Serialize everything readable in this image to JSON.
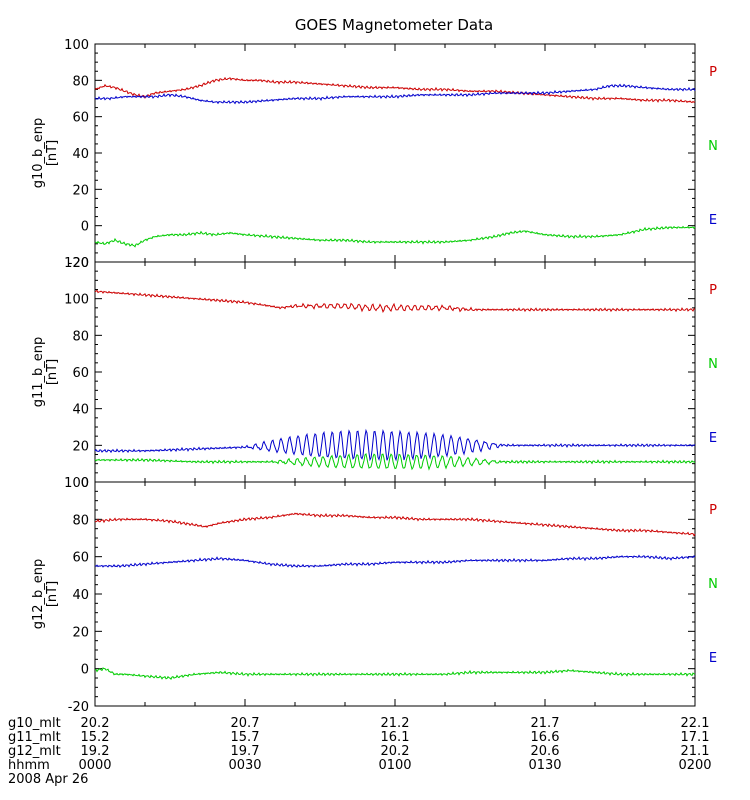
{
  "chart_data": {
    "type": "line",
    "title": "GOES Magnetometer Data",
    "panels": [
      {
        "ylabel": "g10_b_enp",
        "yunit": "[nT]",
        "ylim": [
          -20,
          100
        ],
        "yticks": [
          -20,
          0,
          20,
          40,
          60,
          80,
          100
        ],
        "legend": [
          "P",
          "N",
          "E"
        ],
        "series": [
          {
            "name": "P",
            "color": "#cc0000",
            "x": [
              0,
              2,
              4,
              6,
              8,
              10,
              12,
              15,
              18,
              21,
              24,
              27,
              30,
              33,
              36,
              40,
              45,
              50,
              55,
              60,
              65,
              70,
              75,
              80,
              85,
              90,
              95,
              100,
              105,
              110,
              115,
              120
            ],
            "y": [
              75,
              77,
              76,
              74,
              72,
              71,
              73,
              74,
              75,
              77,
              80,
              81,
              80,
              80,
              79,
              79,
              78,
              77,
              76,
              76,
              75,
              75,
              74,
              74,
              73,
              72,
              71,
              70,
              70,
              69,
              69,
              68
            ]
          },
          {
            "name": "E",
            "color": "#0000cc",
            "x": [
              0,
              3,
              6,
              9,
              12,
              15,
              18,
              21,
              24,
              27,
              30,
              35,
              40,
              45,
              50,
              55,
              60,
              65,
              70,
              75,
              80,
              85,
              90,
              95,
              100,
              103,
              106,
              110,
              115,
              120
            ],
            "y": [
              70,
              70,
              71,
              71,
              71,
              72,
              71,
              69,
              68,
              68,
              68,
              69,
              70,
              70,
              71,
              71,
              71,
              72,
              72,
              72,
              73,
              73,
              73,
              74,
              75,
              77,
              77,
              76,
              75,
              75
            ]
          },
          {
            "name": "N",
            "color": "#00cc00",
            "x": [
              0,
              2,
              4,
              6,
              8,
              10,
              12,
              15,
              18,
              21,
              24,
              27,
              30,
              35,
              40,
              45,
              50,
              55,
              60,
              65,
              70,
              75,
              80,
              83,
              86,
              90,
              95,
              100,
              105,
              110,
              115,
              120
            ],
            "y": [
              -9,
              -10,
              -8,
              -10,
              -11,
              -8,
              -6,
              -5,
              -5,
              -4,
              -5,
              -4,
              -5,
              -6,
              -7,
              -8,
              -8,
              -9,
              -9,
              -9,
              -9,
              -8,
              -6,
              -4,
              -3,
              -5,
              -6,
              -6,
              -5,
              -2,
              -1,
              -1
            ]
          }
        ]
      },
      {
        "ylabel": "g11_b_enp",
        "yunit": "[nT]",
        "ylim": [
          0,
          120
        ],
        "yticks": [
          0,
          20,
          40,
          60,
          80,
          100,
          120
        ],
        "legend": [
          "P",
          "N",
          "E"
        ],
        "series": [
          {
            "name": "P",
            "color": "#cc0000",
            "x": [
              0,
              5,
              10,
              15,
              20,
              25,
              30,
              35,
              37,
              40,
              45,
              50,
              55,
              60,
              65,
              70,
              75,
              80,
              85,
              90,
              95,
              100,
              105,
              110,
              115,
              120
            ],
            "y": [
              104,
              103,
              102,
              101,
              100,
              99,
              98,
              96,
              95,
              96,
              96,
              96,
              95,
              95,
              95,
              95,
              94,
              94,
              94,
              94,
              94,
              94,
              94,
              94,
              94,
              94
            ],
            "osc": {
              "x0": 37,
              "x1": 78,
              "amp": 1.5,
              "period": 1.4
            }
          },
          {
            "name": "E",
            "color": "#0000cc",
            "x": [
              0,
              10,
              20,
              30,
              40,
              50,
              60,
              70,
              80,
              90,
              100,
              110,
              120
            ],
            "y": [
              17,
              17,
              18,
              19,
              20,
              20,
              20,
              20,
              20,
              20,
              20,
              20,
              20
            ],
            "osc": {
              "x0": 30,
              "x1": 82,
              "amp": 8,
              "period": 1.7
            }
          },
          {
            "name": "N",
            "color": "#00cc00",
            "x": [
              0,
              10,
              20,
              30,
              40,
              50,
              60,
              70,
              80,
              90,
              100,
              110,
              120
            ],
            "y": [
              12,
              12,
              11,
              11,
              11,
              11,
              11,
              11,
              11,
              11,
              11,
              11,
              11
            ],
            "osc": {
              "x0": 35,
              "x1": 82,
              "amp": 4,
              "period": 1.7
            }
          }
        ]
      },
      {
        "ylabel": "g12_b_enp",
        "yunit": "[nT]",
        "ylim": [
          -20,
          100
        ],
        "yticks": [
          -20,
          0,
          20,
          40,
          60,
          80,
          100
        ],
        "legend": [
          "P",
          "N",
          "E"
        ],
        "series": [
          {
            "name": "P",
            "color": "#cc0000",
            "x": [
              0,
              5,
              10,
              15,
              20,
              22,
              25,
              30,
              35,
              40,
              45,
              50,
              55,
              60,
              65,
              70,
              75,
              80,
              85,
              90,
              95,
              100,
              105,
              110,
              115,
              120
            ],
            "y": [
              79,
              80,
              80,
              79,
              77,
              76,
              78,
              80,
              81,
              83,
              82,
              82,
              81,
              81,
              80,
              80,
              80,
              79,
              78,
              77,
              76,
              75,
              74,
              74,
              73,
              72
            ]
          },
          {
            "name": "E",
            "color": "#0000cc",
            "x": [
              0,
              5,
              10,
              15,
              20,
              25,
              30,
              35,
              40,
              45,
              50,
              55,
              60,
              65,
              70,
              75,
              80,
              85,
              90,
              95,
              100,
              105,
              110,
              115,
              120
            ],
            "y": [
              55,
              55,
              56,
              57,
              58,
              59,
              58,
              56,
              55,
              55,
              56,
              56,
              57,
              57,
              57,
              58,
              58,
              58,
              58,
              59,
              59,
              60,
              60,
              59,
              60
            ]
          },
          {
            "name": "N",
            "color": "#00cc00",
            "x": [
              0,
              2,
              4,
              6,
              10,
              15,
              20,
              25,
              30,
              35,
              40,
              45,
              50,
              55,
              60,
              65,
              70,
              75,
              80,
              85,
              90,
              95,
              100,
              105,
              110,
              115,
              120
            ],
            "y": [
              -1,
              0,
              -3,
              -3,
              -4,
              -5,
              -3,
              -2,
              -3,
              -3,
              -3,
              -3,
              -3,
              -3,
              -3,
              -3,
              -3,
              -2,
              -2,
              -2,
              -2,
              -1,
              -2,
              -3,
              -3,
              -3,
              -3
            ]
          }
        ]
      }
    ],
    "x_axis": {
      "range_minutes": [
        0,
        120
      ],
      "tick_minutes": [
        0,
        30,
        60,
        90,
        120
      ],
      "minor_tick_minutes": [
        10,
        20,
        40,
        50,
        70,
        80,
        100,
        110
      ],
      "rows": [
        {
          "label": "g10_mlt",
          "values": [
            "20.2",
            "20.7",
            "21.2",
            "21.7",
            "22.1"
          ]
        },
        {
          "label": "g11_mlt",
          "values": [
            "15.2",
            "15.7",
            "16.1",
            "16.6",
            "17.1"
          ]
        },
        {
          "label": "g12_mlt",
          "values": [
            "19.2",
            "19.7",
            "20.2",
            "20.6",
            "21.1"
          ]
        },
        {
          "label": "hhmm",
          "values": [
            "0000",
            "0030",
            "0100",
            "0130",
            "0200"
          ]
        }
      ],
      "date": "2008 Apr 26"
    }
  }
}
